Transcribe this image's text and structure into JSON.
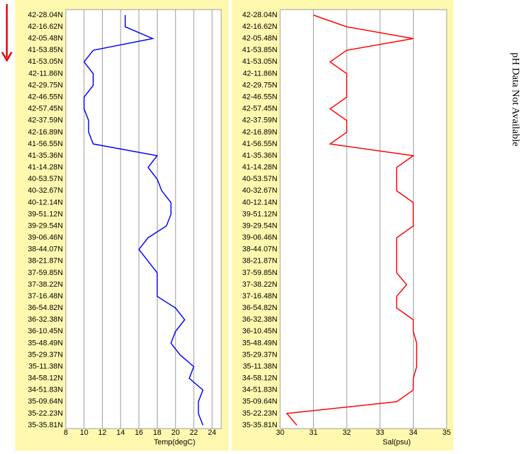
{
  "chart_data": [
    {
      "type": "line",
      "orientation": "horizontal",
      "xlabel": "Temp(degC)",
      "color": "#0000ff",
      "categories": [
        "42-28.04N",
        "42-16.62N",
        "42-05.48N",
        "41-53.85N",
        "41-53.05N",
        "42-11.86N",
        "42-29.75N",
        "42-46.55N",
        "42-57.45N",
        "42-37.59N",
        "42-16.89N",
        "41-56.55N",
        "41-35.36N",
        "41-14.28N",
        "40-53.57N",
        "40-32.67N",
        "40-12.14N",
        "39-51.12N",
        "39-29.54N",
        "39-06.46N",
        "38-44.07N",
        "38-21.87N",
        "37-59.85N",
        "37-38.22N",
        "37-16.48N",
        "36-54.82N",
        "36-32.38N",
        "36-10.45N",
        "35-48.49N",
        "35-29.37N",
        "35-11.38N",
        "34-58.12N",
        "34-51.83N",
        "35-09.64N",
        "35-22.23N",
        "35-35.81N"
      ],
      "values": [
        14.5,
        14.5,
        17.5,
        11,
        10,
        11,
        11,
        10,
        10,
        10.5,
        10.5,
        11,
        18,
        17,
        18,
        18.5,
        19.5,
        19.5,
        19,
        17,
        16,
        17,
        18,
        18,
        18,
        20,
        21,
        20,
        19.5,
        20.5,
        22,
        21.5,
        23,
        22.5,
        22.5,
        23
      ],
      "xlim": [
        8,
        25
      ],
      "xticks": [
        8,
        10,
        12,
        14,
        16,
        18,
        20,
        22,
        24
      ],
      "grid": true
    },
    {
      "type": "line",
      "orientation": "horizontal",
      "xlabel": "Sal(psu)",
      "color": "#ff0000",
      "categories": [
        "42-28.04N",
        "42-16.62N",
        "42-05.48N",
        "41-53.85N",
        "41-53.05N",
        "42-11.86N",
        "42-29.75N",
        "42-46.55N",
        "42-57.45N",
        "42-37.59N",
        "42-16.89N",
        "41-56.55N",
        "41-35.36N",
        "41-14.28N",
        "40-53.57N",
        "40-32.67N",
        "40-12.14N",
        "39-51.12N",
        "39-29.54N",
        "39-06.46N",
        "38-44.07N",
        "38-21.87N",
        "37-59.85N",
        "37-38.22N",
        "37-16.48N",
        "36-54.82N",
        "36-32.38N",
        "36-10.45N",
        "35-48.49N",
        "35-29.37N",
        "35-11.38N",
        "34-58.12N",
        "34-51.83N",
        "35-09.64N",
        "35-22.23N",
        "35-35.81N"
      ],
      "values": [
        31,
        32,
        34,
        32,
        31.5,
        32,
        32,
        32,
        31.5,
        32,
        32,
        31.5,
        34,
        33.5,
        33.5,
        33.5,
        34,
        34,
        34,
        33.5,
        33.5,
        33.5,
        33.5,
        33.8,
        33.5,
        33.5,
        34,
        34,
        34.1,
        34.1,
        34.1,
        34,
        34,
        33.5,
        30.2,
        30.5
      ],
      "xlim": [
        30,
        35
      ],
      "xticks": [
        30,
        31,
        32,
        33,
        34,
        35
      ],
      "grid": true
    }
  ],
  "note": "pH Data Not Available"
}
